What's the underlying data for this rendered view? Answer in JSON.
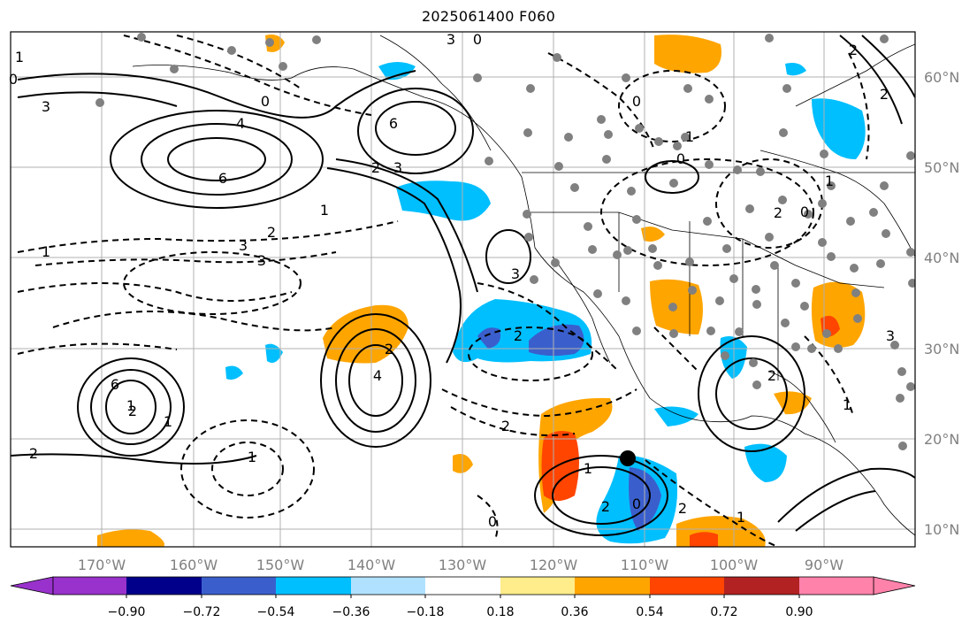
{
  "title": "2025061400 F060",
  "map": {
    "lon_ticks": [
      "170°W",
      "160°W",
      "150°W",
      "140°W",
      "130°W",
      "120°W",
      "110°W",
      "100°W",
      "90°W"
    ],
    "lat_ticks": [
      "60°N",
      "50°N",
      "40°N",
      "30°N",
      "20°N",
      "10°N"
    ],
    "marker": {
      "label": "storm-center",
      "color": "#000000"
    },
    "station_dot_color": "#808080",
    "contour_labels": [
      "6",
      "4",
      "3",
      "6",
      "2",
      "3",
      "0",
      "2",
      "6",
      "4",
      "2",
      "1",
      "2",
      "3",
      "3",
      "1",
      "2",
      "2",
      "0",
      "3",
      "2",
      "1",
      "0",
      "2",
      "0",
      "1",
      "1",
      "2",
      "0",
      "1",
      "2",
      "1",
      "0",
      "3",
      "3",
      "2",
      "2",
      "1",
      "0",
      "2",
      "1",
      "1",
      "0",
      "1"
    ]
  },
  "colorbar": {
    "tick_labels": [
      "−0.90",
      "−0.72",
      "−0.54",
      "−0.36",
      "−0.18",
      "0.18",
      "0.36",
      "0.54",
      "0.72",
      "0.90"
    ],
    "colors": [
      "#9932cc",
      "#00008b",
      "#3a5fcd",
      "#00bfff",
      "#b0e2ff",
      "#ffffff",
      "#ffec8b",
      "#ffa500",
      "#ff4500",
      "#b22222",
      "#ff82ab"
    ]
  }
}
